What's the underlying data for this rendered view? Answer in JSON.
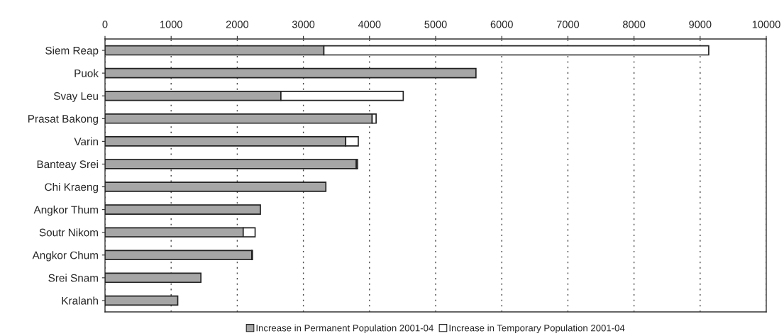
{
  "chart_data": {
    "type": "bar",
    "orientation": "horizontal",
    "stacked": true,
    "categories": [
      "Siem Reap",
      "Puok",
      "Svay Leu",
      "Prasat Bakong",
      "Varin",
      "Banteay Srei",
      "Chi Kraeng",
      "Angkor Thum",
      "Soutr Nikom",
      "Angkor Chum",
      "Srei Snam",
      "Kralanh"
    ],
    "series": [
      {
        "name": "Increase in Permanent Population 2001-04",
        "color": "#a6a6a6",
        "values": [
          3310,
          5610,
          2660,
          4040,
          3640,
          3800,
          3340,
          2350,
          2090,
          2220,
          1450,
          1100
        ]
      },
      {
        "name": "Increase in Temporary Population 2001-04",
        "color": "#ffffff",
        "values": [
          5820,
          null,
          1850,
          60,
          190,
          20,
          null,
          null,
          180,
          10,
          null,
          null
        ]
      }
    ],
    "xlim": [
      0,
      10000
    ],
    "xticks": [
      0,
      1000,
      2000,
      3000,
      4000,
      5000,
      6000,
      7000,
      8000,
      9000,
      10000
    ],
    "grid": "x",
    "legend": "bottom"
  }
}
